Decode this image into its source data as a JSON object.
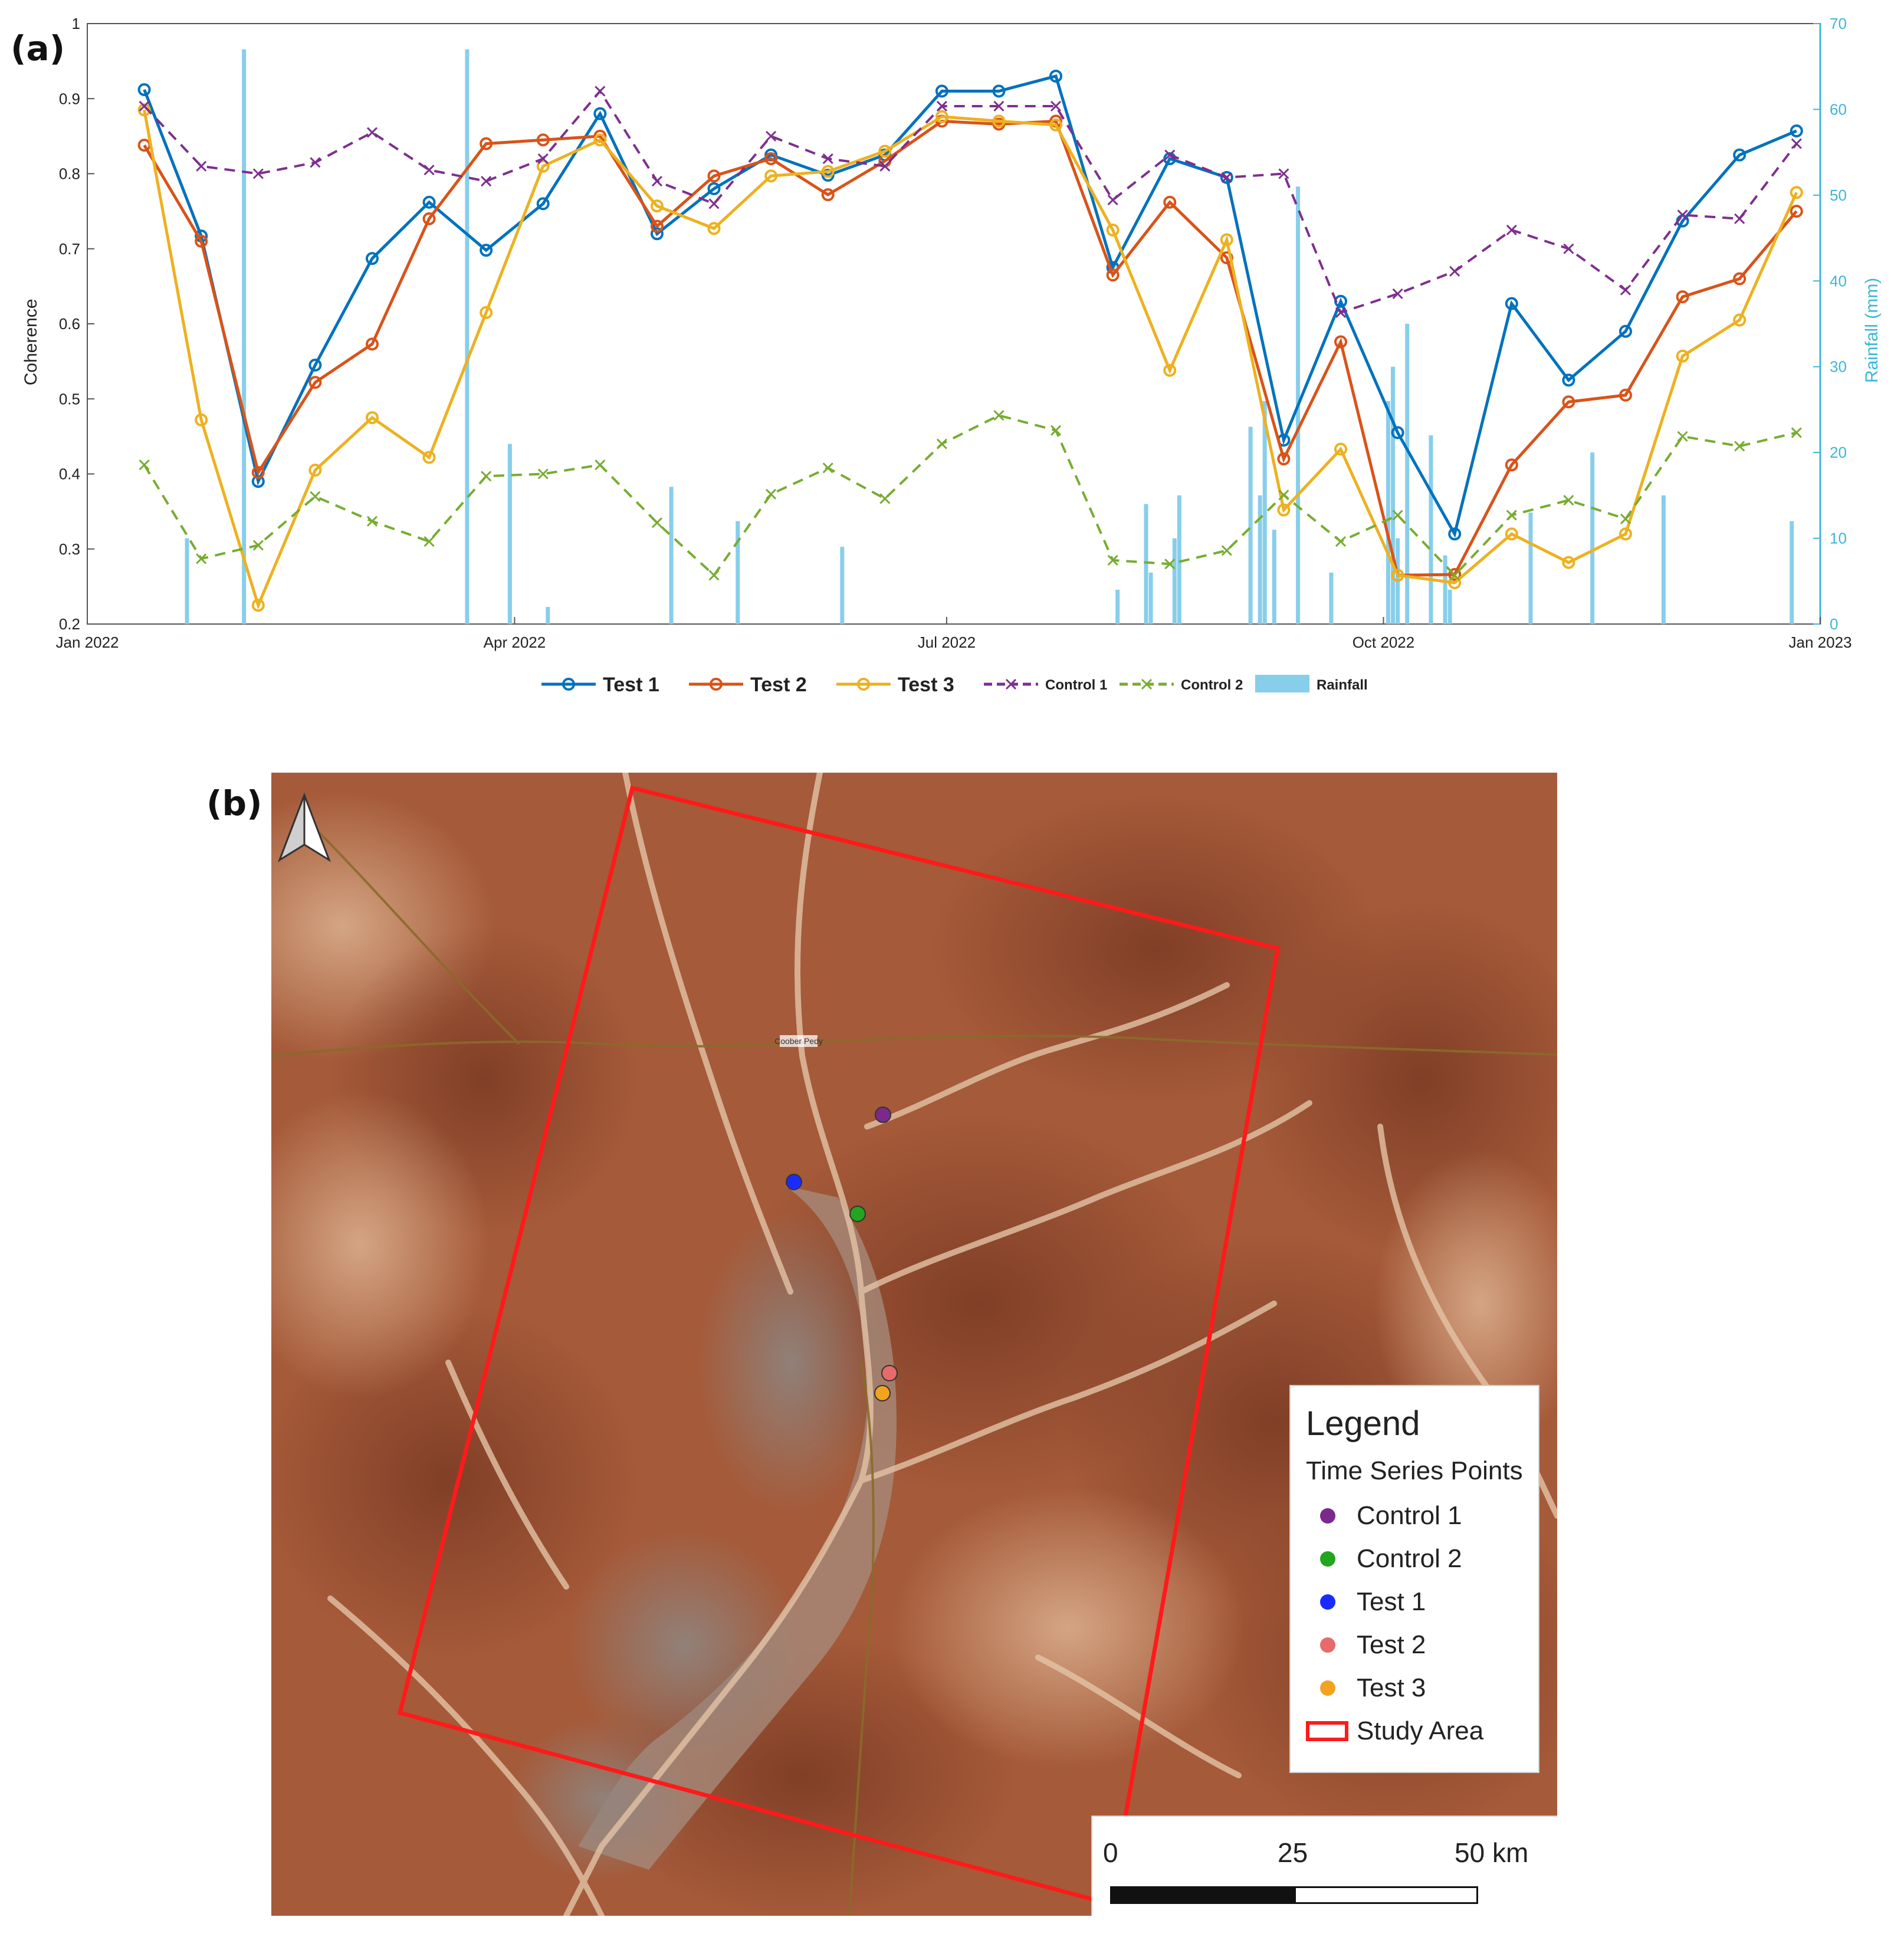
{
  "panels": {
    "a_label": "(a)",
    "b_label": "(b)"
  },
  "chart_data": {
    "type": "line",
    "title": "",
    "ylabel": "Coherence",
    "y2label": "Rainfall (mm)",
    "ylim": [
      0.2,
      1.0
    ],
    "y2lim": [
      0,
      70
    ],
    "yticks": [
      "0.2",
      "0.3",
      "0.4",
      "0.5",
      "0.6",
      "0.7",
      "0.8",
      "0.9",
      "1"
    ],
    "y2ticks": [
      "0",
      "10",
      "20",
      "30",
      "40",
      "50",
      "60",
      "70"
    ],
    "xlim": [
      "2022-01-01",
      "2023-01-01"
    ],
    "xticks": [
      {
        "date": "2022-01-01",
        "label": "Jan 2022"
      },
      {
        "date": "2022-04-01",
        "label": "Apr 2022"
      },
      {
        "date": "2022-07-01",
        "label": "Jul 2022"
      },
      {
        "date": "2022-10-01",
        "label": "Oct 2022"
      },
      {
        "date": "2023-01-01",
        "label": "Jan 2023"
      }
    ],
    "legend_position": "bottom",
    "dates": [
      "2022-01-13",
      "2022-01-25",
      "2022-02-06",
      "2022-02-18",
      "2022-03-02",
      "2022-03-14",
      "2022-03-26",
      "2022-04-07",
      "2022-04-19",
      "2022-05-01",
      "2022-05-13",
      "2022-05-25",
      "2022-06-06",
      "2022-06-18",
      "2022-06-30",
      "2022-07-12",
      "2022-07-24",
      "2022-08-05",
      "2022-08-17",
      "2022-08-29",
      "2022-09-10",
      "2022-09-22",
      "2022-10-04",
      "2022-10-16",
      "2022-10-28",
      "2022-11-09",
      "2022-11-21",
      "2022-12-03",
      "2022-12-15",
      "2022-12-27"
    ],
    "series": [
      {
        "name": "Test 1",
        "color": "#0072bd",
        "style": "solid",
        "marker": "circle",
        "values": [
          0.912,
          0.717,
          0.39,
          0.545,
          0.687,
          0.762,
          0.698,
          0.76,
          0.88,
          0.72,
          0.78,
          0.825,
          0.798,
          0.825,
          0.91,
          0.91,
          0.93,
          0.675,
          0.82,
          0.795,
          0.445,
          0.63,
          0.455,
          0.32,
          0.627,
          0.525,
          0.59,
          0.737,
          0.825,
          0.857
        ]
      },
      {
        "name": "Test 2",
        "color": "#d95319",
        "style": "solid",
        "marker": "circle",
        "values": [
          0.838,
          0.71,
          0.402,
          0.522,
          0.573,
          0.74,
          0.84,
          0.845,
          0.85,
          0.73,
          0.797,
          0.82,
          0.772,
          0.817,
          0.87,
          0.866,
          0.87,
          0.665,
          0.762,
          0.688,
          0.42,
          0.576,
          0.265,
          0.266,
          0.412,
          0.496,
          0.505,
          0.636,
          0.66,
          0.75
        ]
      },
      {
        "name": "Test 3",
        "color": "#edb120",
        "style": "solid",
        "marker": "circle",
        "values": [
          0.885,
          0.472,
          0.225,
          0.405,
          0.475,
          0.422,
          0.615,
          0.81,
          0.845,
          0.757,
          0.727,
          0.797,
          0.803,
          0.83,
          0.876,
          0.87,
          0.865,
          0.725,
          0.538,
          0.712,
          0.352,
          0.433,
          0.265,
          0.255,
          0.32,
          0.282,
          0.32,
          0.557,
          0.605,
          0.775
        ]
      },
      {
        "name": "Control 1",
        "color": "#7e2f8e",
        "style": "dashed",
        "marker": "x",
        "values": [
          0.89,
          0.81,
          0.8,
          0.815,
          0.855,
          0.805,
          0.79,
          0.82,
          0.91,
          0.79,
          0.76,
          0.85,
          0.82,
          0.81,
          0.89,
          0.89,
          0.89,
          0.765,
          0.825,
          0.795,
          0.8,
          0.615,
          0.64,
          0.67,
          0.725,
          0.7,
          0.645,
          0.745,
          0.74,
          0.84
        ]
      },
      {
        "name": "Control 2",
        "color": "#77ac30",
        "style": "dashed",
        "marker": "x",
        "values": [
          0.412,
          0.287,
          0.305,
          0.37,
          0.337,
          0.31,
          0.397,
          0.4,
          0.412,
          0.335,
          0.265,
          0.373,
          0.408,
          0.367,
          0.44,
          0.478,
          0.458,
          0.285,
          0.28,
          0.298,
          0.372,
          0.31,
          0.345,
          0.265,
          0.345,
          0.365,
          0.34,
          0.45,
          0.437,
          0.455
        ]
      }
    ],
    "rainfall": {
      "name": "Rainfall",
      "color": "#87ceeb",
      "dates": [
        "2022-01-22",
        "2022-02-03",
        "2022-03-22",
        "2022-03-31",
        "2022-04-08",
        "2022-05-04",
        "2022-05-18",
        "2022-06-09",
        "2022-08-06",
        "2022-08-12",
        "2022-08-13",
        "2022-08-18",
        "2022-08-19",
        "2022-09-03",
        "2022-09-05",
        "2022-09-06",
        "2022-09-08",
        "2022-09-13",
        "2022-09-20",
        "2022-10-02",
        "2022-10-03",
        "2022-10-04",
        "2022-10-06",
        "2022-10-11",
        "2022-10-14",
        "2022-10-15",
        "2022-11-01",
        "2022-11-14",
        "2022-11-29",
        "2022-12-26"
      ],
      "values": [
        10,
        67,
        67,
        21,
        2,
        16,
        12,
        9,
        4,
        14,
        6,
        10,
        15,
        23,
        15,
        26,
        11,
        51,
        6,
        26,
        30,
        10,
        35,
        22,
        8,
        4,
        13,
        20,
        15,
        12
      ]
    }
  },
  "map": {
    "legend": {
      "title": "Legend",
      "subtitle": "Time Series Points",
      "items": [
        {
          "label": "Control 1",
          "color": "#7b2a8b"
        },
        {
          "label": "Control 2",
          "color": "#22a51f"
        },
        {
          "label": "Test 1",
          "color": "#1a2bff"
        },
        {
          "label": "Test 2",
          "color": "#e86b6b"
        },
        {
          "label": "Test 3",
          "color": "#f2a320"
        },
        {
          "label": "Study Area",
          "color": "#ff1a1a"
        }
      ]
    },
    "scale_bar": {
      "labels": [
        "0",
        "25",
        "50 km"
      ]
    },
    "town_label": "Coober Pedy"
  }
}
